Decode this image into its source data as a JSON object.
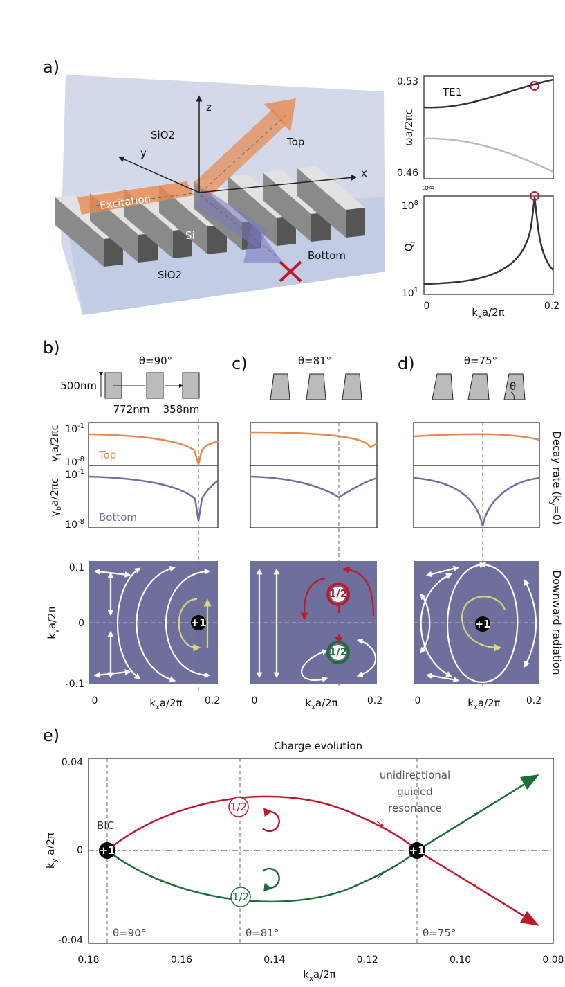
{
  "panel_a": {
    "label": "a)",
    "z": "z",
    "y": "y",
    "x": "x",
    "sio2_top": "SiO2",
    "top": "Top",
    "excitation": "Excitation",
    "si": "Si",
    "bottom": "Bottom",
    "sio2_bottom": "SiO2",
    "band_plot": {
      "y_max": "0.53",
      "y_min": "0.46",
      "mode": "TE1",
      "ylabel": "ωa/2πc"
    },
    "q_plot": {
      "top_note": "to∞",
      "y_max": {
        "base": "10",
        "exp": "8"
      },
      "y_min": {
        "base": "10",
        "exp": "1"
      },
      "ylabel": {
        "base": "Q",
        "sub": "r"
      },
      "x_min": "0",
      "x_max": "0.2",
      "xlabel": {
        "base": "k",
        "sub": "x",
        "tail": "a/2π"
      }
    }
  },
  "dims": {
    "height": "500nm",
    "width": "772nm",
    "gap": "358nm",
    "angle": "θ"
  },
  "decay": {
    "top_max": {
      "base": "10",
      "exp": "-1"
    },
    "top_min": {
      "base": "10",
      "exp": "-8"
    },
    "bottom_max": {
      "base": "10",
      "exp": "-1"
    },
    "bottom_min": {
      "base": "10",
      "exp": "-8"
    },
    "top_label": {
      "base": "γ",
      "sub": "t",
      "tail": "a/2πc"
    },
    "top_name": "Top",
    "bottom_label": {
      "base": "γ",
      "sub": "b",
      "tail": "a/2πc"
    },
    "bottom_name": "Bottom",
    "side": {
      "base": "Decay rate (k",
      "sub": "y",
      "tail": "=0)"
    }
  },
  "field": {
    "y_max": "0.1",
    "y_mid": "0",
    "y_min": "-0.1",
    "ylabel": {
      "base": "k",
      "sub": "y",
      "tail": "a/2π"
    },
    "side": "Downward radiation"
  },
  "panels": [
    {
      "label": "b)",
      "theta": "θ=90°",
      "x_min": "0",
      "x_max": "0.2",
      "xlabel": {
        "base": "k",
        "sub": "x",
        "tail": "a/2π"
      },
      "charges": [
        "+1"
      ]
    },
    {
      "label": "c)",
      "theta": "θ=81°",
      "x_min": "0",
      "x_max": "0.2",
      "xlabel": {
        "base": "k",
        "sub": "x",
        "tail": "a/2π"
      },
      "charges": [
        "1/2",
        "1/2"
      ]
    },
    {
      "label": "d)",
      "theta": "θ=75°",
      "x_min": "0",
      "x_max": "0.2",
      "xlabel": {
        "base": "k",
        "sub": "x",
        "tail": "a/2π"
      },
      "charges": [
        "+1"
      ]
    }
  ],
  "panel_e": {
    "label": "e)",
    "title": "Charge evolution",
    "yticks": [
      "0.04",
      "0",
      "-0.04"
    ],
    "xticks": [
      "0.18",
      "0.16",
      "0.14",
      "0.12",
      "0.10",
      "0.08"
    ],
    "ylabel": {
      "base": "k",
      "sub": "y",
      "tail": " a/2π"
    },
    "xlabel": {
      "base": "k",
      "sub": "x",
      "tail": "a/2π"
    },
    "bic": "BIC",
    "note": [
      "unidirectional",
      "guided",
      "resonance"
    ],
    "charges": [
      "+1",
      "+1"
    ],
    "halves": [
      "1/2",
      "1/2"
    ],
    "thetas": [
      "θ=90°",
      "θ=81°",
      "θ=75°"
    ]
  }
}
